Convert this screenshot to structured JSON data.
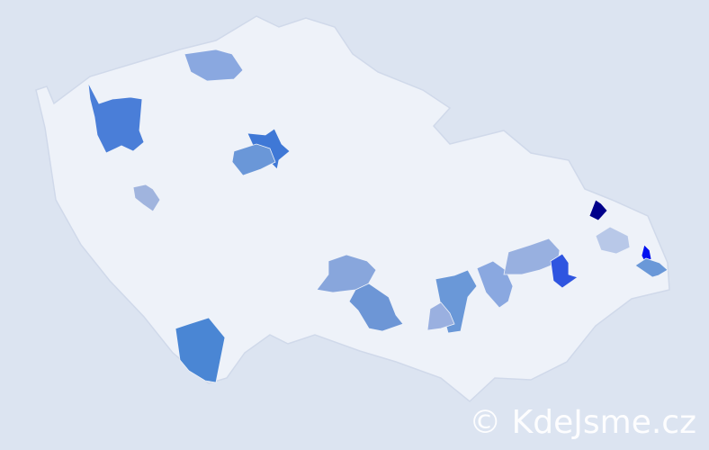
{
  "map": {
    "background_color": "#dce4f1",
    "country_fill": "#eef2f9",
    "border_color": "#c8d3e6",
    "highlighted_regions": [
      {
        "id": "nw-1",
        "color": "#4a7ed8"
      },
      {
        "id": "n-1",
        "color": "#8aa8e0"
      },
      {
        "id": "c-1",
        "color": "#3f78d6"
      },
      {
        "id": "c-2",
        "color": "#6a97d8"
      },
      {
        "id": "w-1",
        "color": "#a0b4de"
      },
      {
        "id": "s-1",
        "color": "#4a86d4"
      },
      {
        "id": "sc-1",
        "color": "#88a6dc"
      },
      {
        "id": "sc-2",
        "color": "#6d96d6"
      },
      {
        "id": "se-1",
        "color": "#6a98d8"
      },
      {
        "id": "se-2",
        "color": "#9ab0e0"
      },
      {
        "id": "e-1",
        "color": "#8aa8e0"
      },
      {
        "id": "e-2",
        "color": "#98b0e0"
      },
      {
        "id": "e-3",
        "color": "#2f55e0"
      },
      {
        "id": "ne-1",
        "color": "#00008b"
      },
      {
        "id": "ne-2",
        "color": "#b8c8e8"
      },
      {
        "id": "ne-3",
        "color": "#0010f0"
      },
      {
        "id": "ne-4",
        "color": "#6a98d8"
      }
    ]
  },
  "watermark": {
    "text": "© KdeJsme.cz"
  }
}
